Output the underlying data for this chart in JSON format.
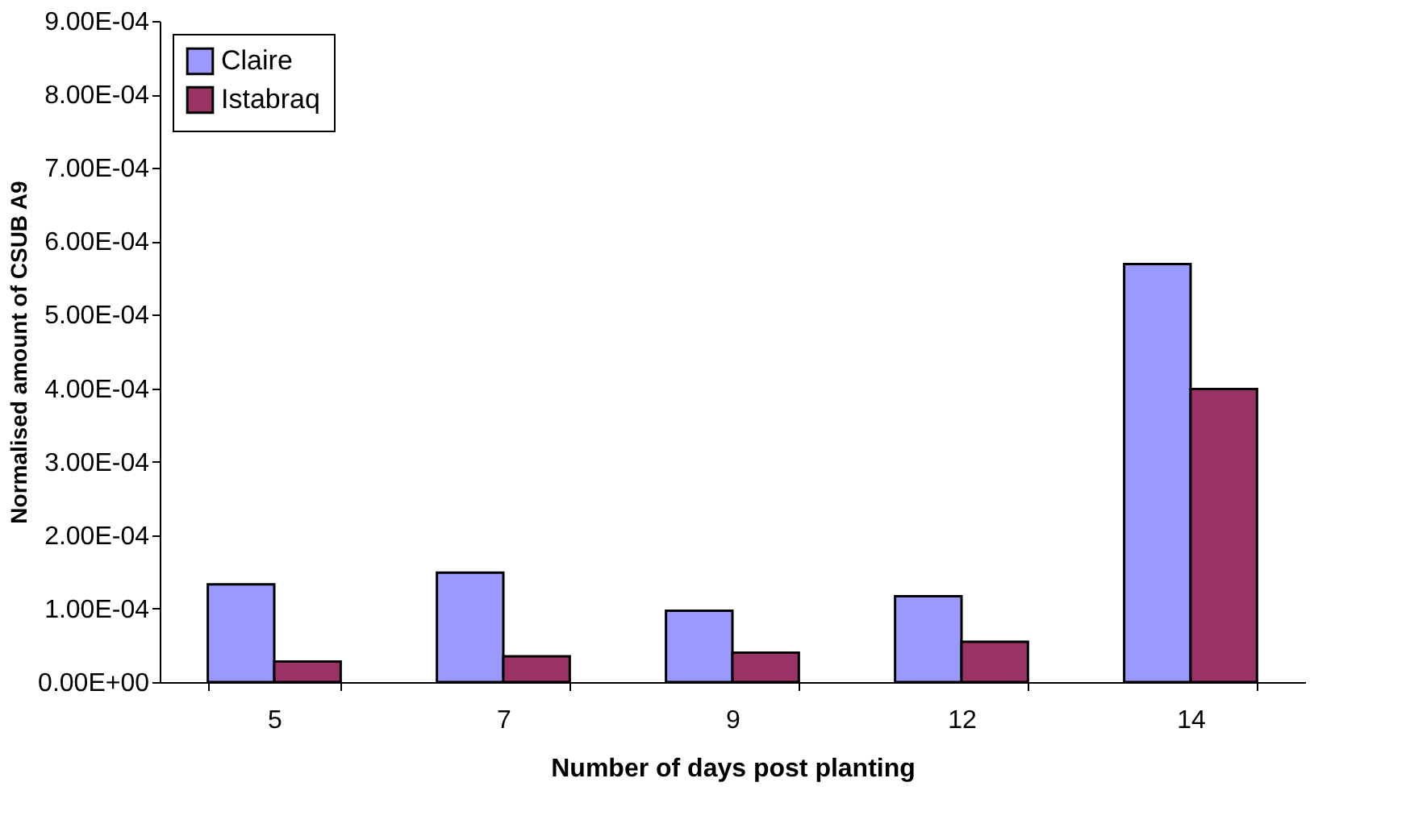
{
  "chart_data": {
    "type": "bar",
    "xlabel": "Number of days  post planting",
    "ylabel": "Normalised amount of CSUB A9",
    "categories": [
      "5",
      "7",
      "9",
      "12",
      "14"
    ],
    "series": [
      {
        "name": "Claire",
        "color": "#9999ff",
        "values": [
          0.000133,
          0.000149,
          9.7e-05,
          0.000117,
          0.000569
        ]
      },
      {
        "name": "Istabraq",
        "color": "#993366",
        "values": [
          2.8e-05,
          3.5e-05,
          4e-05,
          5.5e-05,
          0.000399
        ]
      }
    ],
    "ylim": [
      0,
      0.0009
    ],
    "yticks": [
      {
        "value": 0,
        "label": "0.00E+00"
      },
      {
        "value": 0.0001,
        "label": "1.00E-04"
      },
      {
        "value": 0.0002,
        "label": "2.00E-04"
      },
      {
        "value": 0.0003,
        "label": "3.00E-04"
      },
      {
        "value": 0.0004,
        "label": "4.00E-04"
      },
      {
        "value": 0.0005,
        "label": "5.00E-04"
      },
      {
        "value": 0.0006,
        "label": "6.00E-04"
      },
      {
        "value": 0.0007,
        "label": "7.00E-04"
      },
      {
        "value": 0.0008,
        "label": "8.00E-04"
      },
      {
        "value": 0.0009,
        "label": "9.00E-04"
      }
    ],
    "grid": false,
    "legend": "top left"
  }
}
